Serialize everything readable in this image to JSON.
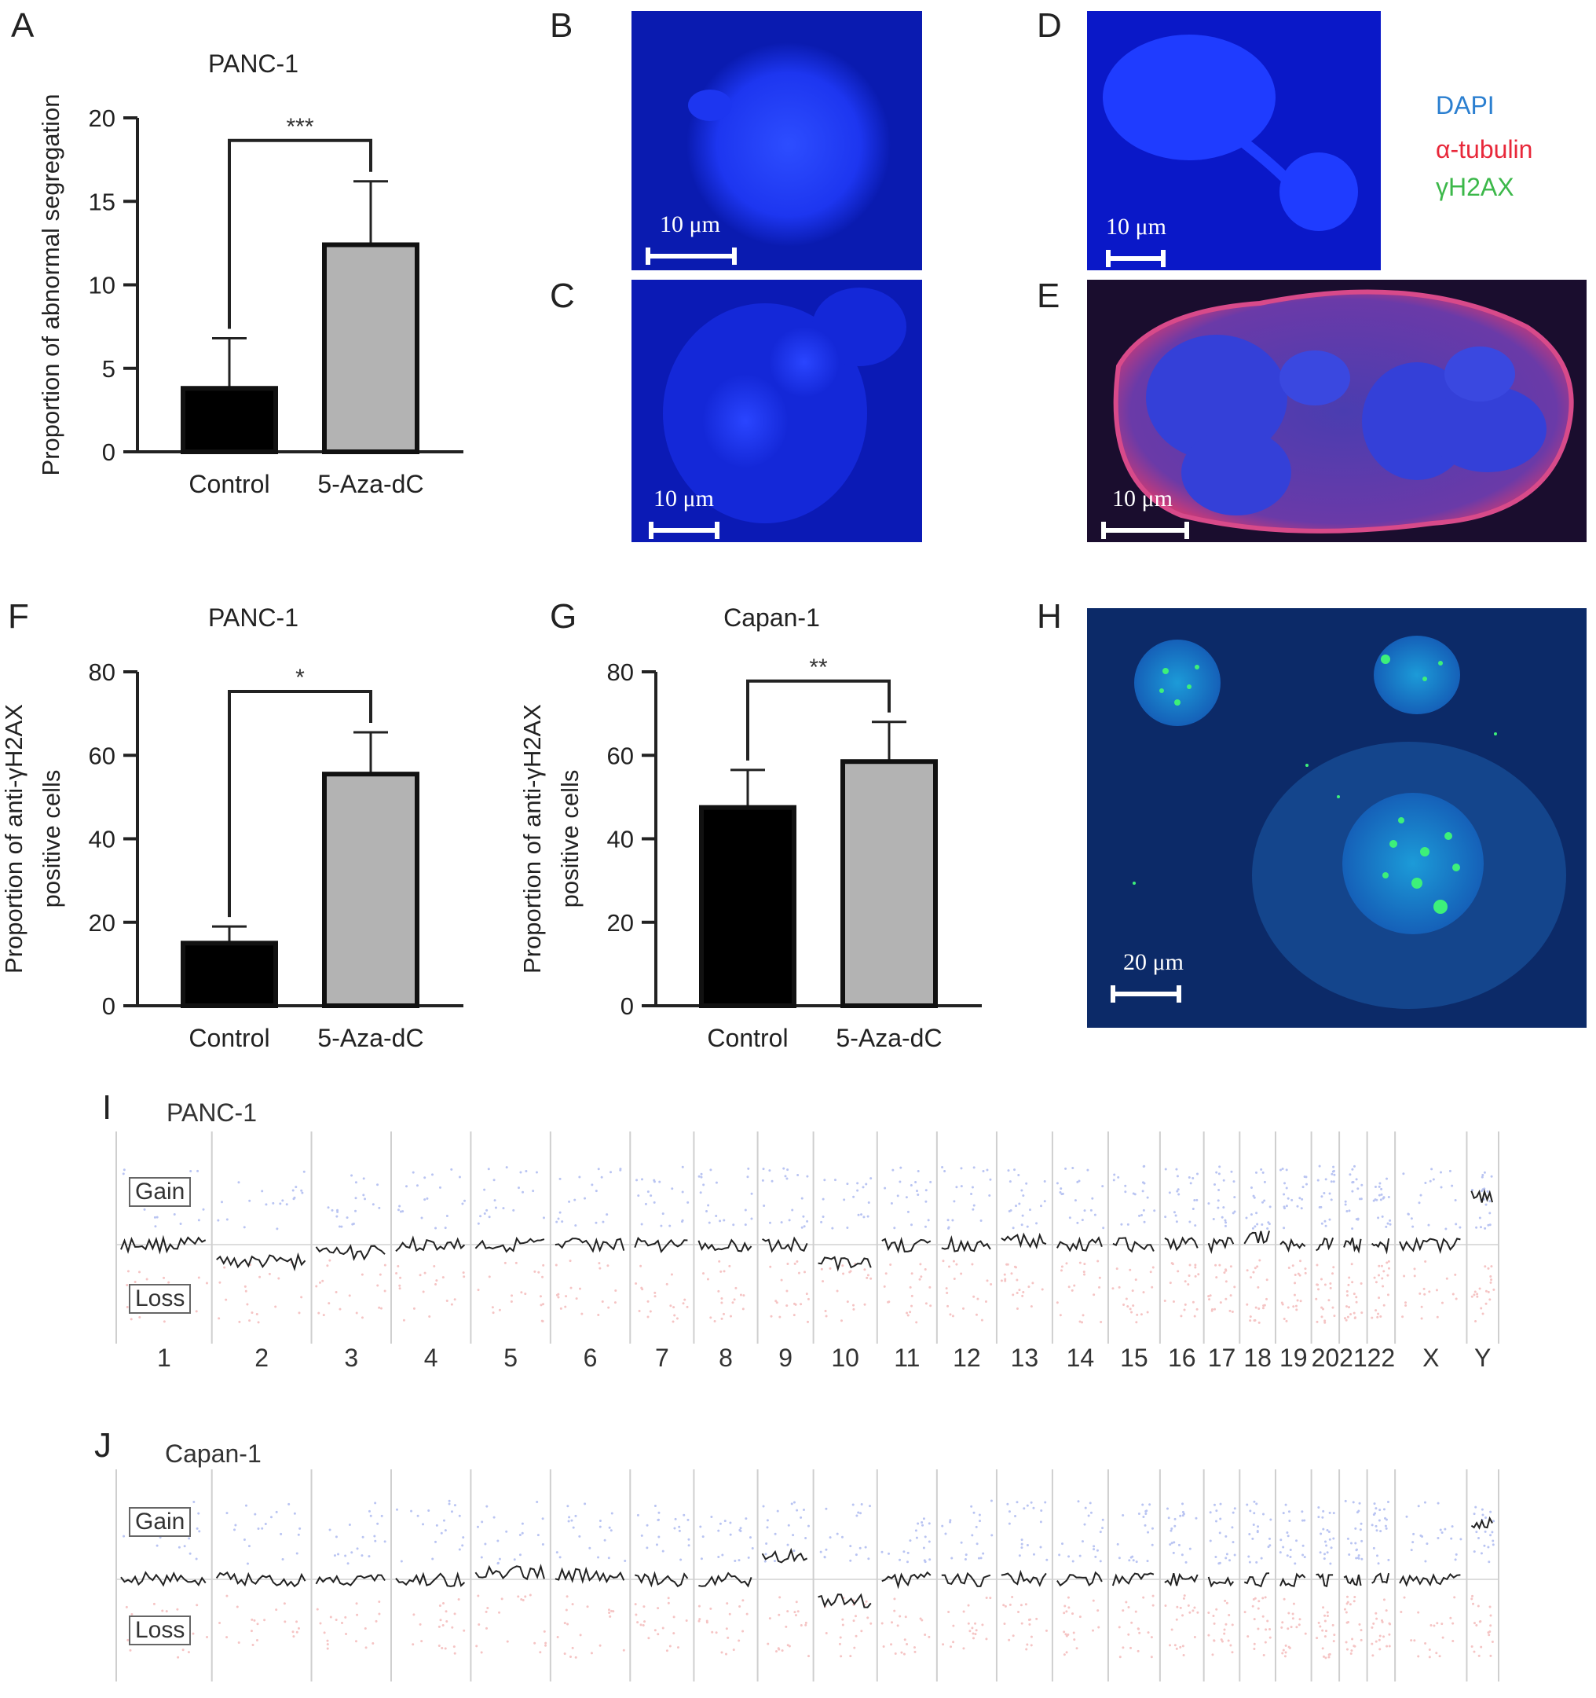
{
  "panels": {
    "A": "A",
    "B": "B",
    "C": "C",
    "D": "D",
    "E": "E",
    "F": "F",
    "G": "G",
    "H": "H",
    "I": "I",
    "J": "J"
  },
  "chart_data": [
    {
      "id": "A",
      "type": "bar",
      "title": "PANC-1",
      "ylabel": "Proportion of abnormal segregation",
      "categories": [
        "Control",
        "5-Aza-dC"
      ],
      "values": [
        3.8,
        12.4
      ],
      "errors": [
        3.0,
        3.8
      ],
      "ylim": [
        0,
        20
      ],
      "yticks": [
        0,
        5,
        10,
        15,
        20
      ],
      "significance": "***",
      "colors": [
        "#000000",
        "#b3b3b3"
      ]
    },
    {
      "id": "F",
      "type": "bar",
      "title": "PANC-1",
      "ylabel": [
        "Proportion of anti-γH2AX",
        "positive cells"
      ],
      "categories": [
        "Control",
        "5-Aza-dC"
      ],
      "values": [
        15,
        55.5
      ],
      "errors": [
        4,
        10
      ],
      "ylim": [
        0,
        80
      ],
      "yticks": [
        0,
        20,
        40,
        60,
        80
      ],
      "significance": "*",
      "colors": [
        "#000000",
        "#b3b3b3"
      ]
    },
    {
      "id": "G",
      "type": "bar",
      "title": "Capan-1",
      "ylabel": [
        "Proportion of anti-γH2AX",
        "positive cells"
      ],
      "categories": [
        "Control",
        "5-Aza-dC"
      ],
      "values": [
        47.5,
        58.5
      ],
      "errors": [
        9,
        9.5
      ],
      "ylim": [
        0,
        80
      ],
      "yticks": [
        0,
        20,
        40,
        60,
        80
      ],
      "significance": "**",
      "colors": [
        "#000000",
        "#b3b3b3"
      ]
    }
  ],
  "micrographs": {
    "B": {
      "scale": "10 μm"
    },
    "C": {
      "scale": "10 μm"
    },
    "D": {
      "scale": "10 μm"
    },
    "E": {
      "scale": "10 μm"
    },
    "H": {
      "scale": "20 μm"
    }
  },
  "legend": {
    "dapi": "DAPI",
    "dapi_color": "#2b7fd0",
    "tubulin": "α-tubulin",
    "tubulin_color": "#e8283a",
    "h2ax": "γH2AX",
    "h2ax_color": "#3cb84a"
  },
  "cnv": {
    "gain": "Gain",
    "loss": "Loss",
    "chromosomes": [
      "1",
      "2",
      "3",
      "4",
      "5",
      "6",
      "7",
      "8",
      "9",
      "10",
      "11",
      "12",
      "13",
      "14",
      "15",
      "16",
      "17",
      "18",
      "19",
      "20",
      "21",
      "22",
      "X",
      "Y"
    ],
    "I": {
      "title": "PANC-1"
    },
    "J": {
      "title": "Capan-1"
    }
  }
}
